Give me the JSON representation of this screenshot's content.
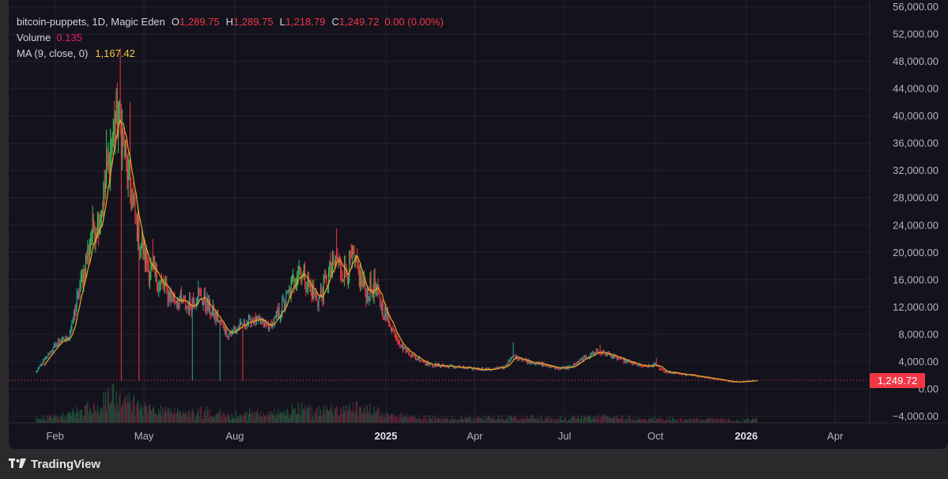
{
  "legend": {
    "symbol": "bitcoin-puppets, 1D, Magic Eden",
    "o_label": "O",
    "o_value": "1,289.75",
    "h_label": "H",
    "h_value": "1,289.75",
    "l_label": "L",
    "l_value": "1,218.79",
    "c_label": "C",
    "c_value": "1,249.72",
    "change": "0.00 (0.00%)",
    "volume_label": "Volume",
    "volume_value": "0.135",
    "ma_label": "MA (9, close, 0)",
    "ma_value": "1,167.42"
  },
  "last_price_label": "1,249.72",
  "footer": {
    "brand": "TradingView",
    "logo_icon": "tradingview-logo-icon"
  },
  "colors": {
    "background": "#14131d",
    "up": "#26a69a",
    "up_bright": "#3cbf5c",
    "down": "#f23645",
    "ma": "#f5a623",
    "volume_up": "#1d5c3b",
    "volume_down": "#6b1f3c",
    "grid": "#24232e",
    "axis_text": "#b2b5be"
  },
  "chart_data": {
    "type": "candlestick",
    "symbol": "bitcoin-puppets",
    "interval": "1D",
    "exchange": "Magic Eden",
    "y_axis": {
      "ticks": [
        "56,000.00",
        "52,000.00",
        "48,000.00",
        "44,000.00",
        "40,000.00",
        "36,000.00",
        "32,000.00",
        "28,000.00",
        "24,000.00",
        "20,000.00",
        "16,000.00",
        "12,000.00",
        "8,000.00",
        "4,000.00",
        "0.00",
        "−4,000.00"
      ],
      "tick_values": [
        56000,
        52000,
        48000,
        44000,
        40000,
        36000,
        32000,
        28000,
        24000,
        20000,
        16000,
        12000,
        8000,
        4000,
        0,
        -4000
      ],
      "ylim": [
        -5000,
        57000
      ]
    },
    "x_axis": {
      "ticks": [
        {
          "label": "Feb",
          "date": "2024-02-01",
          "bold": false
        },
        {
          "label": "May",
          "date": "2024-05-01",
          "bold": false
        },
        {
          "label": "Aug",
          "date": "2024-08-01",
          "bold": false
        },
        {
          "label": "2025",
          "date": "2025-01-01",
          "bold": true
        },
        {
          "label": "Apr",
          "date": "2025-04-01",
          "bold": false
        },
        {
          "label": "Jul",
          "date": "2025-07-01",
          "bold": false
        },
        {
          "label": "Oct",
          "date": "2025-10-01",
          "bold": false
        },
        {
          "label": "2026",
          "date": "2026-01-01",
          "bold": true
        },
        {
          "label": "Apr",
          "date": "2026-04-01",
          "bold": false
        }
      ],
      "xlim": [
        "2023-12-16",
        "2026-05-06"
      ]
    },
    "last_close": 1249.72,
    "price_keypoints": [
      [
        "2024-01-13",
        2500
      ],
      [
        "2024-01-25",
        5000
      ],
      [
        "2024-02-05",
        7000
      ],
      [
        "2024-02-15",
        7500
      ],
      [
        "2024-02-25",
        14000
      ],
      [
        "2024-03-08",
        22000
      ],
      [
        "2024-03-20",
        27000
      ],
      [
        "2024-03-28",
        35000
      ],
      [
        "2024-04-02",
        40000
      ],
      [
        "2024-04-08",
        38000
      ],
      [
        "2024-04-15",
        31000
      ],
      [
        "2024-04-25",
        23000
      ],
      [
        "2024-05-05",
        18000
      ],
      [
        "2024-05-15",
        16000
      ],
      [
        "2024-05-25",
        14000
      ],
      [
        "2024-06-05",
        13000
      ],
      [
        "2024-06-15",
        12000
      ],
      [
        "2024-06-25",
        14000
      ],
      [
        "2024-07-05",
        12000
      ],
      [
        "2024-07-15",
        10000
      ],
      [
        "2024-07-25",
        8000
      ],
      [
        "2024-08-05",
        9000
      ],
      [
        "2024-08-15",
        10000
      ],
      [
        "2024-08-25",
        10000
      ],
      [
        "2024-09-05",
        9000
      ],
      [
        "2024-09-15",
        11000
      ],
      [
        "2024-09-25",
        14000
      ],
      [
        "2024-10-05",
        18000
      ],
      [
        "2024-10-15",
        15000
      ],
      [
        "2024-10-25",
        13000
      ],
      [
        "2024-11-05",
        17000
      ],
      [
        "2024-11-12",
        19000
      ],
      [
        "2024-11-20",
        17000
      ],
      [
        "2024-11-28",
        19000
      ],
      [
        "2024-12-05",
        16500
      ],
      [
        "2024-12-12",
        14000
      ],
      [
        "2024-12-20",
        15000
      ],
      [
        "2024-12-28",
        12000
      ],
      [
        "2025-01-08",
        8500
      ],
      [
        "2025-01-18",
        6000
      ],
      [
        "2025-02-01",
        4500
      ],
      [
        "2025-02-15",
        3500
      ],
      [
        "2025-03-05",
        3300
      ],
      [
        "2025-03-25",
        3000
      ],
      [
        "2025-04-15",
        2800
      ],
      [
        "2025-05-01",
        3200
      ],
      [
        "2025-05-10",
        4800
      ],
      [
        "2025-05-25",
        4000
      ],
      [
        "2025-06-10",
        3500
      ],
      [
        "2025-06-25",
        3000
      ],
      [
        "2025-07-08",
        3200
      ],
      [
        "2025-07-18",
        4200
      ],
      [
        "2025-08-02",
        5500
      ],
      [
        "2025-08-15",
        5000
      ],
      [
        "2025-09-01",
        4000
      ],
      [
        "2025-09-20",
        3200
      ],
      [
        "2025-10-01",
        3500
      ],
      [
        "2025-10-10",
        2500
      ],
      [
        "2025-10-25",
        2200
      ],
      [
        "2025-11-15",
        1800
      ],
      [
        "2025-12-05",
        1300
      ],
      [
        "2025-12-20",
        1000
      ],
      [
        "2026-01-01",
        1100
      ],
      [
        "2026-01-12",
        1249.72
      ]
    ],
    "spike_keypoints": [
      [
        "2024-04-07",
        50000
      ],
      [
        "2024-04-17",
        42000
      ],
      [
        "2024-03-24",
        38000
      ],
      [
        "2024-11-12",
        23500
      ],
      [
        "2024-05-10",
        22000
      ],
      [
        "2025-05-10",
        6800
      ],
      [
        "2025-08-06",
        6500
      ],
      [
        "2025-10-02",
        4500
      ]
    ],
    "volume": {
      "label": "Volume",
      "last": 0.135
    },
    "ma": {
      "label": "MA (9, close, 0)",
      "period": 9,
      "last": 1167.42
    }
  }
}
